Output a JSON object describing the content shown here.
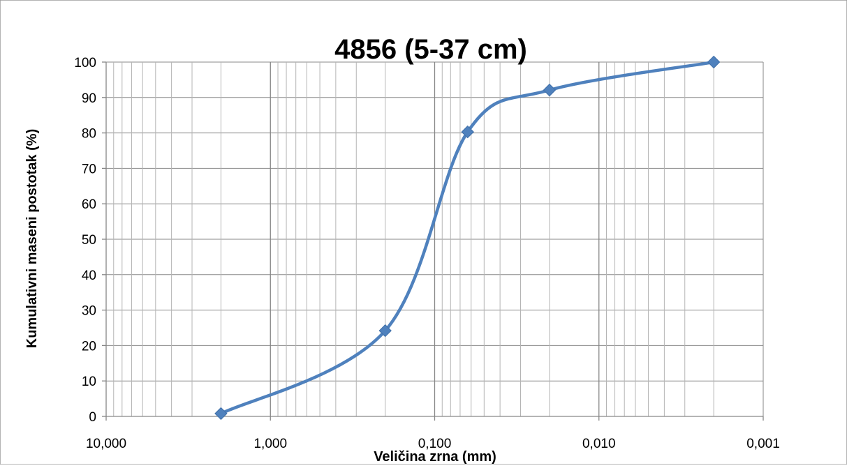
{
  "chart_data": {
    "type": "line",
    "title": "4856 (5-37 cm)",
    "xlabel": "Veličina zrna (mm)",
    "ylabel": "Kumulativni maseni postotak (%)",
    "x_scale": "log",
    "x_reversed": true,
    "xlim": [
      10,
      0.001
    ],
    "ylim": [
      0,
      100
    ],
    "x_tick_labels": [
      "10,000",
      "1,000",
      "0,100",
      "0,010",
      "0,001"
    ],
    "y_tick_labels": [
      "0",
      "10",
      "20",
      "30",
      "40",
      "50",
      "60",
      "70",
      "80",
      "90",
      "100"
    ],
    "grid": true,
    "legend": "none",
    "series_color": "#4F81BD",
    "marker": "diamond",
    "smooth": true,
    "series": [
      {
        "x": [
          2,
          0.2,
          0.063,
          0.02,
          0.002
        ],
        "y": [
          0.8,
          24.2,
          80.3,
          92.1,
          100
        ]
      }
    ]
  }
}
